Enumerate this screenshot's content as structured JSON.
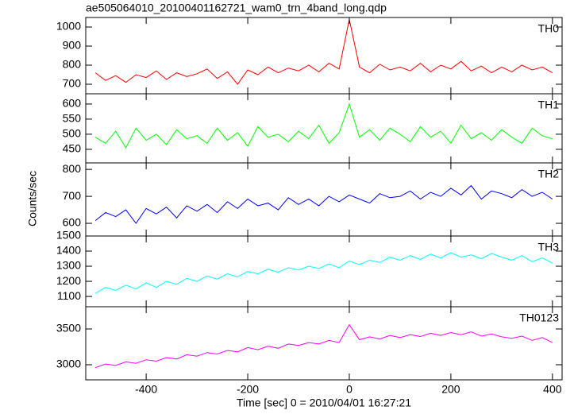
{
  "chart_data": [
    {
      "type": "line",
      "title": "ae505064010_20100401162721_wam0_trn_4band_long.qdp",
      "name": "TH0",
      "color": "#ff0000",
      "x": [
        -500,
        -480,
        -460,
        -440,
        -420,
        -400,
        -380,
        -360,
        -340,
        -320,
        -300,
        -280,
        -260,
        -240,
        -220,
        -200,
        -180,
        -160,
        -140,
        -120,
        -100,
        -80,
        -60,
        -40,
        -20,
        0,
        20,
        40,
        60,
        80,
        100,
        120,
        140,
        160,
        180,
        200,
        220,
        240,
        260,
        280,
        300,
        320,
        340,
        360,
        380,
        400
      ],
      "values": [
        760,
        720,
        745,
        710,
        750,
        735,
        770,
        725,
        760,
        740,
        755,
        780,
        730,
        765,
        700,
        775,
        750,
        790,
        760,
        785,
        770,
        800,
        765,
        810,
        780,
        1040,
        790,
        760,
        805,
        775,
        790,
        770,
        810,
        765,
        800,
        780,
        820,
        770,
        795,
        760,
        790,
        765,
        800,
        775,
        790,
        760
      ],
      "xlim": [
        -519,
        419
      ],
      "xticks": [
        -400,
        -200,
        0,
        200,
        400
      ],
      "ylim": [
        650,
        1050
      ],
      "yticks": [
        700,
        800,
        900,
        1000
      ]
    },
    {
      "type": "line",
      "name": "TH1",
      "color": "#00ff00",
      "x": [
        -500,
        -480,
        -460,
        -440,
        -420,
        -400,
        -380,
        -360,
        -340,
        -320,
        -300,
        -280,
        -260,
        -240,
        -220,
        -200,
        -180,
        -160,
        -140,
        -120,
        -100,
        -80,
        -60,
        -40,
        -20,
        0,
        20,
        40,
        60,
        80,
        100,
        120,
        140,
        160,
        180,
        200,
        220,
        240,
        260,
        280,
        300,
        320,
        340,
        360,
        380,
        400
      ],
      "values": [
        490,
        470,
        510,
        455,
        520,
        480,
        500,
        465,
        515,
        485,
        495,
        470,
        520,
        480,
        505,
        460,
        525,
        490,
        500,
        475,
        510,
        485,
        530,
        470,
        505,
        600,
        490,
        515,
        480,
        520,
        500,
        475,
        525,
        490,
        510,
        470,
        530,
        485,
        505,
        480,
        515,
        490,
        470,
        520,
        495,
        485
      ],
      "xlim": [
        -519,
        419
      ],
      "xticks": [
        -400,
        -200,
        0,
        200,
        400
      ],
      "ylim": [
        405,
        634
      ],
      "yticks": [
        450,
        500,
        550,
        600
      ]
    },
    {
      "type": "line",
      "name": "TH2",
      "color": "#0000ff",
      "ylabel": "Counts/sec",
      "x": [
        -500,
        -480,
        -460,
        -440,
        -420,
        -400,
        -380,
        -360,
        -340,
        -320,
        -300,
        -280,
        -260,
        -240,
        -220,
        -200,
        -180,
        -160,
        -140,
        -120,
        -100,
        -80,
        -60,
        -40,
        -20,
        0,
        20,
        40,
        60,
        80,
        100,
        120,
        140,
        160,
        180,
        200,
        220,
        240,
        260,
        280,
        300,
        320,
        340,
        360,
        380,
        400
      ],
      "values": [
        610,
        640,
        625,
        650,
        600,
        655,
        635,
        660,
        620,
        665,
        645,
        670,
        640,
        680,
        655,
        690,
        665,
        675,
        650,
        695,
        670,
        690,
        665,
        700,
        680,
        705,
        690,
        675,
        710,
        695,
        700,
        720,
        690,
        715,
        700,
        730,
        705,
        740,
        690,
        720,
        710,
        695,
        725,
        700,
        715,
        690
      ],
      "xlim": [
        -519,
        419
      ],
      "xticks": [
        -400,
        -200,
        0,
        200,
        400
      ],
      "ylim": [
        553,
        824
      ],
      "yticks": [
        600,
        700,
        800
      ]
    },
    {
      "type": "line",
      "name": "TH3",
      "color": "#00ffff",
      "x": [
        -500,
        -480,
        -460,
        -440,
        -420,
        -400,
        -380,
        -360,
        -340,
        -320,
        -300,
        -280,
        -260,
        -240,
        -220,
        -200,
        -180,
        -160,
        -140,
        -120,
        -100,
        -80,
        -60,
        -40,
        -20,
        0,
        20,
        40,
        60,
        80,
        100,
        120,
        140,
        160,
        180,
        200,
        220,
        240,
        260,
        280,
        300,
        320,
        340,
        360,
        380,
        400
      ],
      "values": [
        1120,
        1160,
        1140,
        1175,
        1150,
        1190,
        1160,
        1200,
        1180,
        1220,
        1200,
        1235,
        1215,
        1250,
        1230,
        1265,
        1250,
        1280,
        1260,
        1290,
        1275,
        1300,
        1285,
        1315,
        1290,
        1335,
        1310,
        1340,
        1325,
        1360,
        1340,
        1370,
        1345,
        1380,
        1355,
        1390,
        1360,
        1375,
        1350,
        1385,
        1360,
        1340,
        1370,
        1330,
        1355,
        1320
      ],
      "xlim": [
        -519,
        419
      ],
      "xticks": [
        -400,
        -200,
        0,
        200,
        400
      ],
      "ylim": [
        1032,
        1500
      ],
      "yticks": [
        1100,
        1200,
        1300,
        1400,
        1500
      ]
    },
    {
      "type": "line",
      "name": "TH0123",
      "color": "#ff00ff",
      "xlabel": "Time [sec] 0 = 2010/04/01 16:27:21",
      "x": [
        -500,
        -480,
        -460,
        -440,
        -420,
        -400,
        -380,
        -360,
        -340,
        -320,
        -300,
        -280,
        -260,
        -240,
        -220,
        -200,
        -180,
        -160,
        -140,
        -120,
        -100,
        -80,
        -60,
        -40,
        -20,
        0,
        20,
        40,
        60,
        80,
        100,
        120,
        140,
        160,
        180,
        200,
        220,
        240,
        260,
        280,
        300,
        320,
        340,
        360,
        380,
        400
      ],
      "values": [
        2960,
        3010,
        2990,
        3040,
        3020,
        3070,
        3050,
        3100,
        3080,
        3140,
        3120,
        3170,
        3150,
        3200,
        3180,
        3240,
        3210,
        3260,
        3230,
        3290,
        3270,
        3310,
        3290,
        3340,
        3310,
        3560,
        3350,
        3390,
        3360,
        3410,
        3380,
        3420,
        3395,
        3440,
        3410,
        3450,
        3420,
        3460,
        3400,
        3430,
        3390,
        3370,
        3400,
        3340,
        3380,
        3310
      ],
      "xlim": [
        -519,
        419
      ],
      "xticks": [
        -400,
        -200,
        0,
        200,
        400
      ],
      "ylim": [
        2789,
        3811
      ],
      "yticks": [
        3000,
        3500
      ]
    }
  ]
}
